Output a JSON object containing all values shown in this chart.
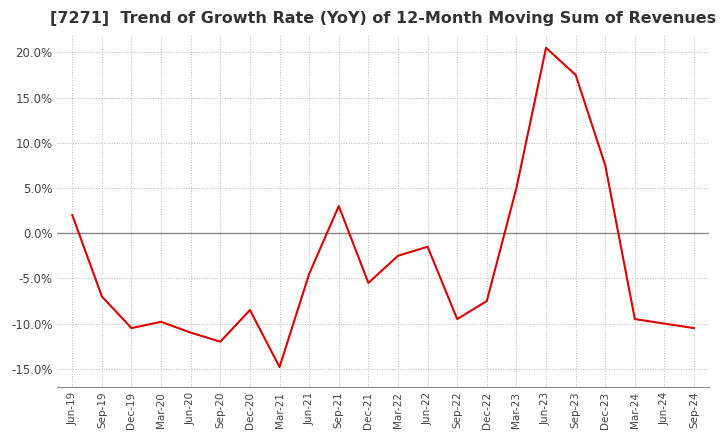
{
  "title": "[7271]  Trend of Growth Rate (YoY) of 12-Month Moving Sum of Revenues",
  "title_fontsize": 11.5,
  "line_color": "#dd0000",
  "background_color": "#ffffff",
  "grid_color": "#bbbbbb",
  "ylim": [
    -17,
    22
  ],
  "yticks": [
    -15,
    -10,
    -5,
    0,
    5,
    10,
    15,
    20
  ],
  "labels": [
    "Jun-19",
    "Sep-19",
    "Dec-19",
    "Mar-20",
    "Jun-20",
    "Sep-20",
    "Dec-20",
    "Mar-21",
    "Jun-21",
    "Sep-21",
    "Dec-21",
    "Mar-22",
    "Jun-22",
    "Sep-22",
    "Dec-22",
    "Mar-23",
    "Jun-23",
    "Sep-23",
    "Dec-23",
    "Mar-24",
    "Jun-24",
    "Sep-24"
  ],
  "values": [
    2.0,
    -7.0,
    -10.5,
    -9.8,
    -11.0,
    -12.0,
    -8.5,
    -14.8,
    -4.5,
    3.0,
    -5.5,
    -2.5,
    -1.5,
    -9.5,
    -7.5,
    5.0,
    20.5,
    17.5,
    7.5,
    -9.5,
    -10.0,
    -10.5
  ]
}
